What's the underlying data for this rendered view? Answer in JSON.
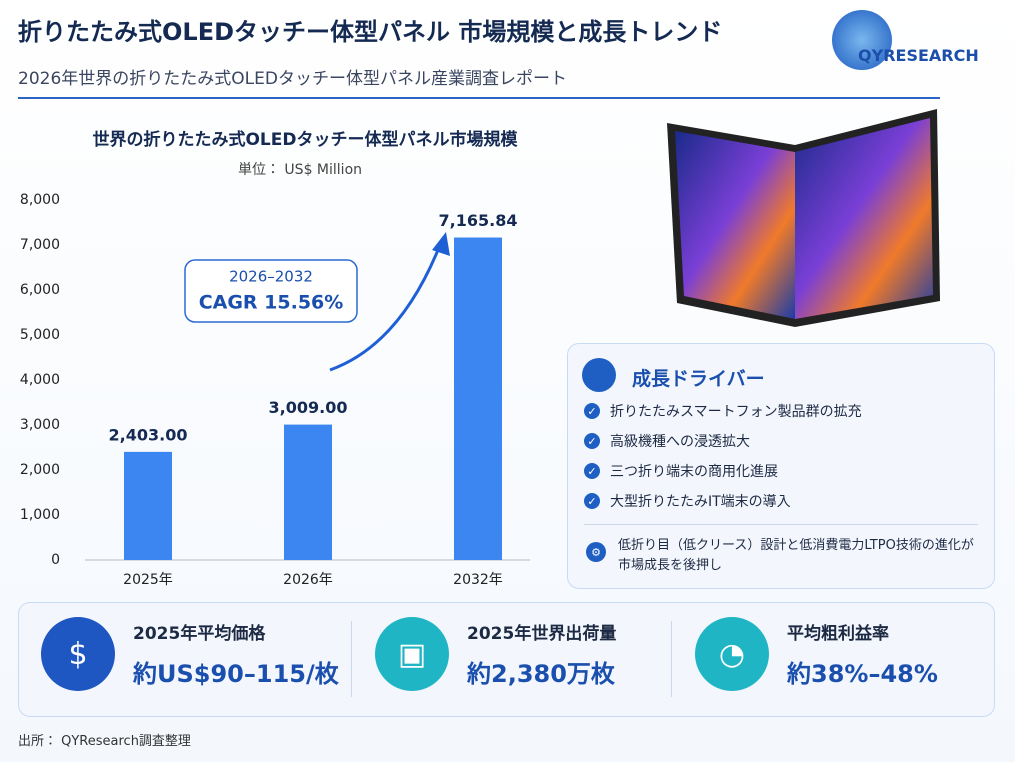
{
  "header": {
    "title": "折りたたみ式OLEDタッチー体型パネル 市場規模と成長トレンド",
    "subtitle": "2026年世界の折りたたみ式OLEDタッチー体型パネル産業調査レポート",
    "logo": "QYRESEARCH"
  },
  "chart_data": {
    "type": "bar",
    "title": "世界の折りたたみ式OLEDタッチー体型パネル市場規模",
    "subtitle": "単位： US$ Million",
    "categories": [
      "2025年",
      "2026年",
      "2032年"
    ],
    "values": [
      2403.0,
      3009.0,
      7165.84
    ],
    "value_labels": [
      "2,403.00",
      "3,009.00",
      "7,165.84"
    ],
    "color": "#3b86f0",
    "ylim": [
      0,
      8000
    ],
    "yticks": [
      0,
      {
        "value": 1000,
        "label": "1,000"
      },
      {
        "value": 2000,
        "label": "2,000"
      },
      {
        "value": 3000,
        "label": "3,000"
      },
      {
        "value": 4000,
        "label": "4,000"
      },
      {
        "value": 5000,
        "label": "5,000"
      },
      {
        "value": 6000,
        "label": "6,000"
      },
      {
        "value": 7000,
        "label": "7,000"
      },
      {
        "value": 8000,
        "label": "8,000"
      }
    ],
    "grid": false,
    "annotation": {
      "period": "2026–2032",
      "text": "CAGR 15.56%"
    }
  },
  "drivers": {
    "title": "成長ドライバー",
    "items": [
      "折りたたみスマートフォン製品群の拡充",
      "高級機種への浸透拡大",
      "三つ折り端末の商用化進展",
      "大型折りたたみIT端末の導入"
    ],
    "note": "低折り目（低クリース）設計と低消費電力LTPO技術の進化が市場成長を後押し"
  },
  "stats": [
    {
      "label": "2025年平均価格",
      "value": "約US$90–115/枚"
    },
    {
      "label": "2025年世界出荷量",
      "value": "約2,380万枚"
    },
    {
      "label": "平均粗利益率",
      "value": "約38%–48%"
    }
  ],
  "source": "出所： QYResearch調査整理"
}
